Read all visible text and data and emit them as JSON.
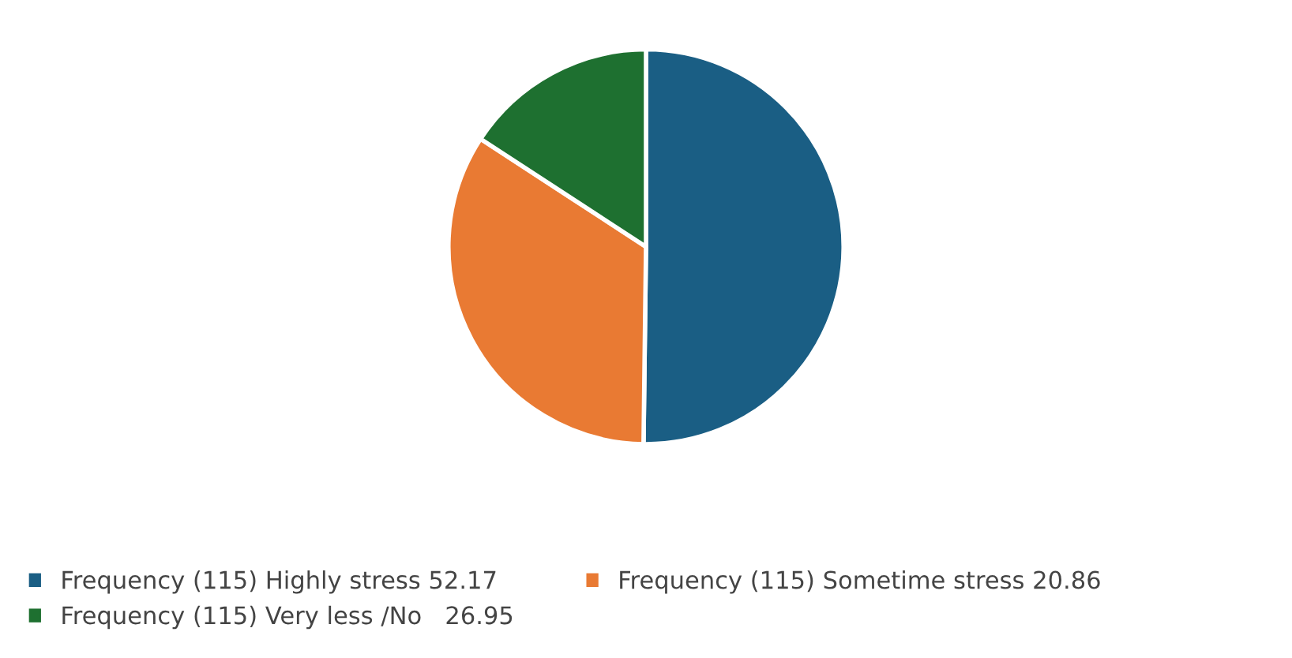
{
  "chart_data": {
    "type": "pie",
    "categories": [
      "Frequency (115) Highly stress 52.17",
      "Frequency (115) Sometime stress 20.86",
      "Frequency (115) Very less /No   26.95"
    ],
    "values": [
      50.2,
      34.0,
      15.8
    ],
    "colors": [
      "#1a5e84",
      "#e97a33",
      "#1e7030"
    ],
    "legend": "bottom"
  }
}
